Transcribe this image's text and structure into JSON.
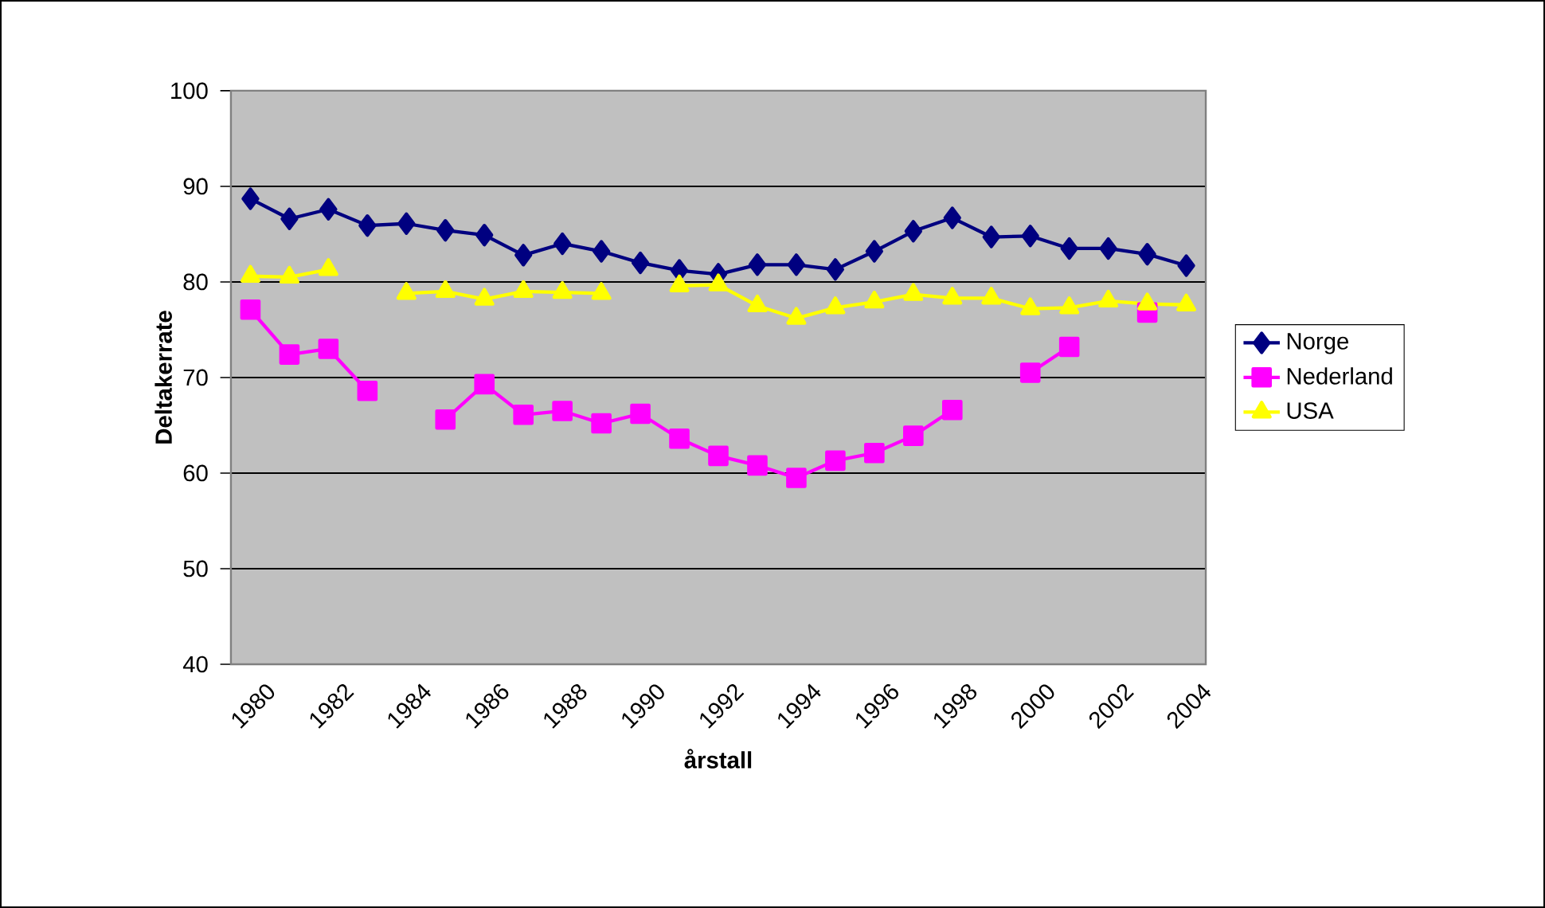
{
  "chart_data": {
    "type": "line",
    "xlabel": "årstall",
    "ylabel": "Deltakerrate",
    "categories": [
      "1980",
      null,
      "1982",
      null,
      "1984",
      null,
      "1986",
      null,
      "1988",
      null,
      "1990",
      null,
      "1992",
      null,
      "1994",
      null,
      "1996",
      null,
      "1998",
      null,
      "2000",
      null,
      "2002",
      null,
      "2004"
    ],
    "series": [
      {
        "name": "Norge",
        "color": "#000080",
        "marker": "diamond",
        "values": [
          88.7,
          86.6,
          87.6,
          85.9,
          86.1,
          85.4,
          84.9,
          82.8,
          84.0,
          83.2,
          82.0,
          81.2,
          80.8,
          81.8,
          81.8,
          81.3,
          83.2,
          85.3,
          86.7,
          84.7,
          84.8,
          83.5,
          83.5,
          82.9,
          81.7
        ]
      },
      {
        "name": "Nederland",
        "color": "#ff00ff",
        "marker": "square",
        "values": [
          77.1,
          72.4,
          73.0,
          68.6,
          null,
          65.6,
          69.3,
          66.1,
          66.5,
          65.2,
          66.2,
          63.6,
          61.8,
          60.8,
          59.5,
          61.3,
          62.1,
          63.9,
          66.6,
          null,
          70.5,
          73.2,
          null,
          76.8,
          null
        ]
      },
      {
        "name": "USA",
        "color": "#ffff00",
        "marker": "triangle",
        "values": [
          80.6,
          80.5,
          81.3,
          null,
          78.8,
          79.0,
          78.2,
          79.0,
          78.9,
          78.8,
          null,
          79.6,
          79.7,
          77.5,
          76.2,
          77.3,
          77.9,
          78.7,
          78.3,
          78.3,
          77.2,
          77.3,
          78.0,
          77.7,
          77.6
        ]
      }
    ],
    "ylim": [
      40,
      100
    ],
    "yticks": [
      40,
      50,
      60,
      70,
      80,
      90,
      100
    ],
    "grid": "y",
    "legend": "right"
  }
}
